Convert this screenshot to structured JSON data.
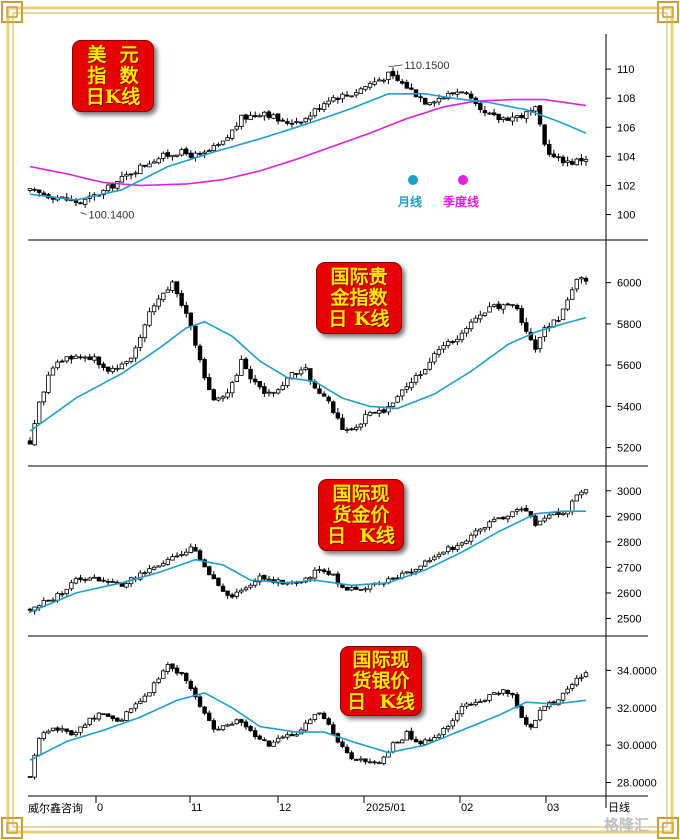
{
  "chart_data": [
    {
      "type": "candlestick",
      "panel": "usd",
      "title_lines": [
        "美  元",
        "指  数",
        "日K线"
      ],
      "y_ticks": [
        "110",
        "108",
        "106",
        "104",
        "102",
        "100"
      ],
      "ylim": [
        98.8,
        112.0
      ],
      "annotations": [
        {
          "text": "110.1500",
          "x_index": 78,
          "value": 110.15
        },
        {
          "text": "100.1400",
          "x_index": 11,
          "value": 100.14
        }
      ],
      "legend": [
        {
          "name": "月线",
          "color": "#1e9fc8"
        },
        {
          "name": "季度线",
          "color": "#e020e0"
        }
      ],
      "anchors": [
        [
          0,
          101.6
        ],
        [
          6,
          101.2
        ],
        [
          11,
          100.8
        ],
        [
          16,
          101.6
        ],
        [
          22,
          102.9
        ],
        [
          27,
          103.8
        ],
        [
          32,
          104.3
        ],
        [
          37,
          104.0
        ],
        [
          42,
          104.9
        ],
        [
          46,
          106.6
        ],
        [
          51,
          107.1
        ],
        [
          55,
          106.3
        ],
        [
          60,
          106.6
        ],
        [
          65,
          108.0
        ],
        [
          70,
          108.3
        ],
        [
          74,
          109.0
        ],
        [
          78,
          109.6
        ],
        [
          82,
          108.8
        ],
        [
          86,
          107.8
        ],
        [
          90,
          108.1
        ],
        [
          94,
          108.6
        ],
        [
          98,
          107.0
        ],
        [
          102,
          106.6
        ],
        [
          107,
          106.8
        ],
        [
          110,
          107.2
        ],
        [
          112,
          104.8
        ],
        [
          114,
          103.9
        ],
        [
          118,
          103.6
        ],
        [
          121,
          103.9
        ]
      ],
      "ma_month_anchors": [
        [
          0,
          101.4
        ],
        [
          10,
          101.0
        ],
        [
          20,
          101.7
        ],
        [
          30,
          103.3
        ],
        [
          40,
          104.3
        ],
        [
          50,
          105.2
        ],
        [
          60,
          106.2
        ],
        [
          70,
          107.3
        ],
        [
          78,
          108.3
        ],
        [
          86,
          108.3
        ],
        [
          92,
          108.0
        ],
        [
          100,
          107.7
        ],
        [
          108,
          107.2
        ],
        [
          115,
          106.4
        ],
        [
          121,
          105.6
        ]
      ],
      "ma_quarter_anchors": [
        [
          0,
          103.3
        ],
        [
          8,
          102.8
        ],
        [
          16,
          102.2
        ],
        [
          24,
          102.0
        ],
        [
          34,
          102.1
        ],
        [
          42,
          102.4
        ],
        [
          50,
          103.0
        ],
        [
          58,
          103.8
        ],
        [
          66,
          104.7
        ],
        [
          74,
          105.6
        ],
        [
          82,
          106.6
        ],
        [
          90,
          107.4
        ],
        [
          97,
          107.8
        ],
        [
          105,
          107.9
        ],
        [
          112,
          107.9
        ],
        [
          121,
          107.5
        ]
      ]
    },
    {
      "type": "candlestick",
      "panel": "gold_index",
      "title_lines": [
        "国际贵",
        "金指数",
        "日 K线"
      ],
      "y_ticks": [
        "6000",
        "5800",
        "5600",
        "5400",
        "5200"
      ],
      "ylim": [
        5140,
        6100
      ],
      "anchors": [
        [
          0,
          5230
        ],
        [
          2,
          5420
        ],
        [
          5,
          5600
        ],
        [
          9,
          5640
        ],
        [
          14,
          5640
        ],
        [
          17,
          5560
        ],
        [
          20,
          5590
        ],
        [
          23,
          5680
        ],
        [
          26,
          5860
        ],
        [
          29,
          5960
        ],
        [
          31,
          6000
        ],
        [
          33,
          5900
        ],
        [
          35,
          5780
        ],
        [
          37,
          5620
        ],
        [
          40,
          5420
        ],
        [
          43,
          5450
        ],
        [
          46,
          5620
        ],
        [
          48,
          5540
        ],
        [
          51,
          5450
        ],
        [
          54,
          5480
        ],
        [
          57,
          5550
        ],
        [
          60,
          5580
        ],
        [
          62,
          5480
        ],
        [
          65,
          5420
        ],
        [
          68,
          5300
        ],
        [
          71,
          5290
        ],
        [
          74,
          5380
        ],
        [
          77,
          5380
        ],
        [
          80,
          5450
        ],
        [
          84,
          5540
        ],
        [
          88,
          5650
        ],
        [
          92,
          5720
        ],
        [
          96,
          5800
        ],
        [
          100,
          5870
        ],
        [
          103,
          5900
        ],
        [
          106,
          5870
        ],
        [
          108,
          5750
        ],
        [
          110,
          5690
        ],
        [
          112,
          5770
        ],
        [
          115,
          5830
        ],
        [
          117,
          5900
        ],
        [
          119,
          6000
        ],
        [
          121,
          6020
        ]
      ],
      "ma_month_anchors": [
        [
          0,
          5280
        ],
        [
          10,
          5440
        ],
        [
          20,
          5560
        ],
        [
          28,
          5680
        ],
        [
          34,
          5780
        ],
        [
          38,
          5810
        ],
        [
          44,
          5740
        ],
        [
          50,
          5620
        ],
        [
          56,
          5540
        ],
        [
          62,
          5520
        ],
        [
          68,
          5440
        ],
        [
          74,
          5400
        ],
        [
          80,
          5390
        ],
        [
          88,
          5460
        ],
        [
          96,
          5570
        ],
        [
          104,
          5700
        ],
        [
          110,
          5760
        ],
        [
          116,
          5800
        ],
        [
          121,
          5830
        ]
      ]
    },
    {
      "type": "candlestick",
      "panel": "spot_gold",
      "title_lines": [
        "国际现",
        "货金价",
        "日  K线"
      ],
      "y_ticks": [
        "3000",
        "2900",
        "2800",
        "2700",
        "2600",
        "2500"
      ],
      "ylim": [
        2455,
        3050
      ],
      "anchors": [
        [
          0,
          2535
        ],
        [
          3,
          2560
        ],
        [
          6,
          2590
        ],
        [
          10,
          2650
        ],
        [
          14,
          2665
        ],
        [
          17,
          2640
        ],
        [
          20,
          2635
        ],
        [
          24,
          2670
        ],
        [
          28,
          2710
        ],
        [
          32,
          2740
        ],
        [
          35,
          2780
        ],
        [
          37,
          2730
        ],
        [
          39,
          2680
        ],
        [
          41,
          2620
        ],
        [
          44,
          2575
        ],
        [
          47,
          2630
        ],
        [
          50,
          2660
        ],
        [
          53,
          2650
        ],
        [
          57,
          2640
        ],
        [
          60,
          2650
        ],
        [
          63,
          2700
        ],
        [
          66,
          2665
        ],
        [
          68,
          2620
        ],
        [
          71,
          2620
        ],
        [
          74,
          2625
        ],
        [
          77,
          2640
        ],
        [
          81,
          2670
        ],
        [
          85,
          2700
        ],
        [
          89,
          2760
        ],
        [
          93,
          2780
        ],
        [
          97,
          2840
        ],
        [
          101,
          2880
        ],
        [
          105,
          2920
        ],
        [
          108,
          2930
        ],
        [
          110,
          2870
        ],
        [
          112,
          2900
        ],
        [
          115,
          2910
        ],
        [
          117,
          2920
        ],
        [
          119,
          2990
        ],
        [
          121,
          2995
        ]
      ],
      "ma_month_anchors": [
        [
          0,
          2525
        ],
        [
          10,
          2600
        ],
        [
          20,
          2640
        ],
        [
          28,
          2680
        ],
        [
          36,
          2730
        ],
        [
          42,
          2710
        ],
        [
          48,
          2650
        ],
        [
          56,
          2640
        ],
        [
          62,
          2650
        ],
        [
          70,
          2630
        ],
        [
          78,
          2640
        ],
        [
          86,
          2690
        ],
        [
          94,
          2760
        ],
        [
          102,
          2840
        ],
        [
          110,
          2910
        ],
        [
          116,
          2920
        ],
        [
          121,
          2920
        ]
      ]
    },
    {
      "type": "candlestick",
      "panel": "spot_silver",
      "title_lines": [
        "国际现",
        "货银价",
        "日  K线"
      ],
      "y_ticks": [
        "34.0000",
        "32.0000",
        "30.0000",
        "28.0000"
      ],
      "ylim": [
        27.6,
        35.2
      ],
      "anchors": [
        [
          0,
          28.3
        ],
        [
          2,
          30.4
        ],
        [
          5,
          31.0
        ],
        [
          9,
          30.6
        ],
        [
          13,
          31.4
        ],
        [
          16,
          31.7
        ],
        [
          19,
          31.2
        ],
        [
          22,
          31.9
        ],
        [
          25,
          32.6
        ],
        [
          28,
          33.6
        ],
        [
          30,
          34.3
        ],
        [
          33,
          33.8
        ],
        [
          35,
          33.1
        ],
        [
          37,
          32.1
        ],
        [
          40,
          30.8
        ],
        [
          43,
          31.2
        ],
        [
          46,
          31.3
        ],
        [
          49,
          30.4
        ],
        [
          52,
          30.0
        ],
        [
          55,
          30.4
        ],
        [
          58,
          30.6
        ],
        [
          60,
          31.3
        ],
        [
          63,
          31.7
        ],
        [
          65,
          31.0
        ],
        [
          67,
          30.1
        ],
        [
          70,
          29.2
        ],
        [
          73,
          29.1
        ],
        [
          76,
          29.0
        ],
        [
          79,
          30.0
        ],
        [
          82,
          30.6
        ],
        [
          85,
          30.1
        ],
        [
          88,
          30.3
        ],
        [
          91,
          31.1
        ],
        [
          94,
          32.0
        ],
        [
          97,
          32.3
        ],
        [
          100,
          32.6
        ],
        [
          103,
          32.9
        ],
        [
          105,
          32.6
        ],
        [
          107,
          31.4
        ],
        [
          109,
          31.0
        ],
        [
          112,
          32.1
        ],
        [
          115,
          32.4
        ],
        [
          117,
          32.9
        ],
        [
          119,
          33.6
        ],
        [
          121,
          33.8
        ]
      ],
      "ma_month_anchors": [
        [
          0,
          29.2
        ],
        [
          8,
          30.2
        ],
        [
          16,
          30.8
        ],
        [
          24,
          31.5
        ],
        [
          32,
          32.4
        ],
        [
          38,
          32.8
        ],
        [
          44,
          32.0
        ],
        [
          50,
          31.0
        ],
        [
          58,
          30.7
        ],
        [
          64,
          30.7
        ],
        [
          70,
          30.2
        ],
        [
          78,
          29.6
        ],
        [
          86,
          30.0
        ],
        [
          94,
          30.8
        ],
        [
          102,
          31.6
        ],
        [
          108,
          32.3
        ],
        [
          114,
          32.2
        ],
        [
          121,
          32.4
        ]
      ]
    }
  ],
  "x_axis": {
    "labels": [
      "0",
      "11",
      "12",
      "2025/01",
      "02",
      "03"
    ],
    "period": "日线"
  },
  "footer": {
    "source": "威尔鑫咨询"
  },
  "watermark": "格隆汇",
  "colors": {
    "ma_month": "#1e9fc8",
    "ma_quarter": "#e020e0",
    "candle": "#000000",
    "badge": "#e60000",
    "badge_text": "#ffe600",
    "frame": "#e9d27a"
  }
}
